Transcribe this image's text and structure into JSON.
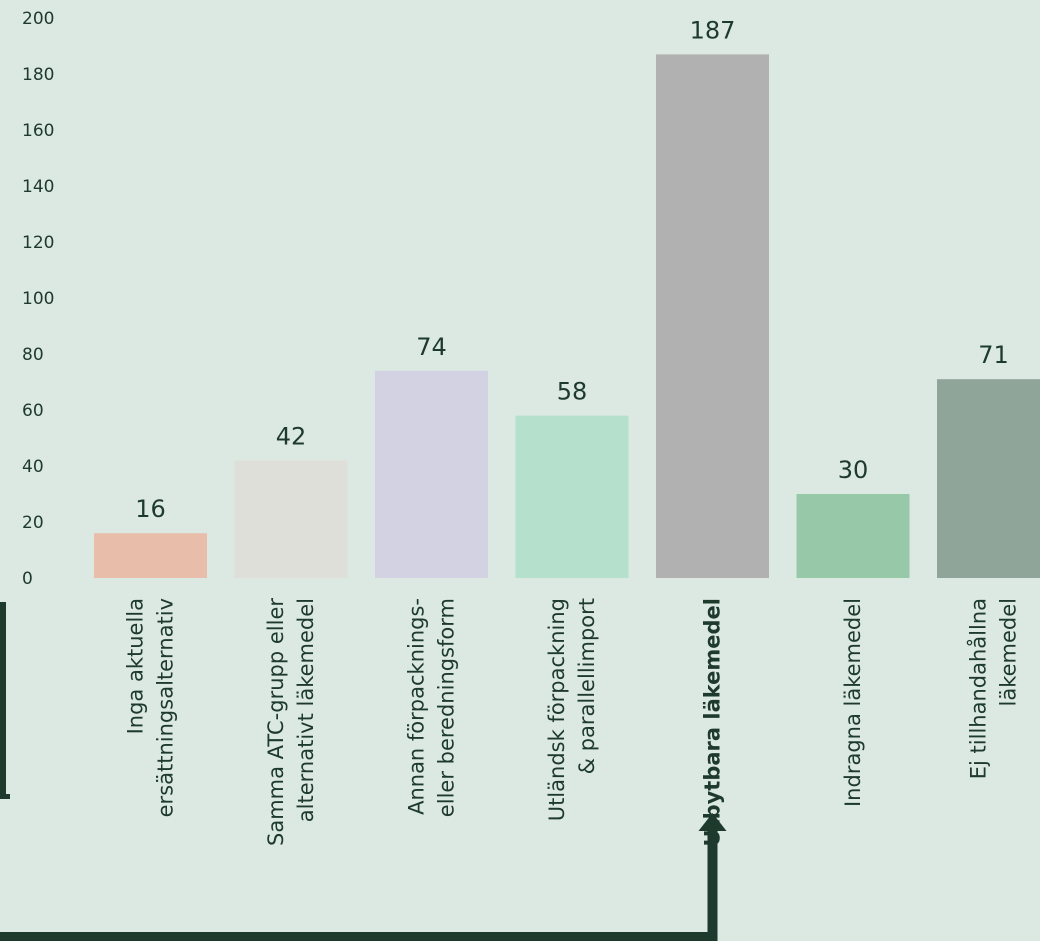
{
  "chart_data": {
    "type": "bar",
    "ylim": [
      0,
      200
    ],
    "yticks": [
      0,
      20,
      40,
      60,
      80,
      100,
      120,
      140,
      160,
      180,
      200
    ],
    "grid": false,
    "categories": [
      [
        "Inga aktuella",
        "ersättningsalternativ"
      ],
      [
        "Samma ATC-grupp eller",
        "alternativt läkemedel"
      ],
      [
        "Annan förpacknings-",
        "eller beredningsform"
      ],
      [
        "Utländsk förpackning",
        "& parallellimport"
      ],
      [
        "Utbytbara läkemedel"
      ],
      [
        "Indragna läkemedel"
      ],
      [
        "Ej tillhandahållna",
        "läkemedel"
      ]
    ],
    "values": [
      16,
      42,
      74,
      58,
      187,
      30,
      71
    ],
    "bar_colors": [
      "#e8beaa",
      "#dedfd9",
      "#d2d2e3",
      "#b5e1cc",
      "#b1b1b1",
      "#97c8a8",
      "#8fa59a"
    ],
    "highlight_index": 4,
    "highlight_connector_color": "#1d3a2c"
  }
}
